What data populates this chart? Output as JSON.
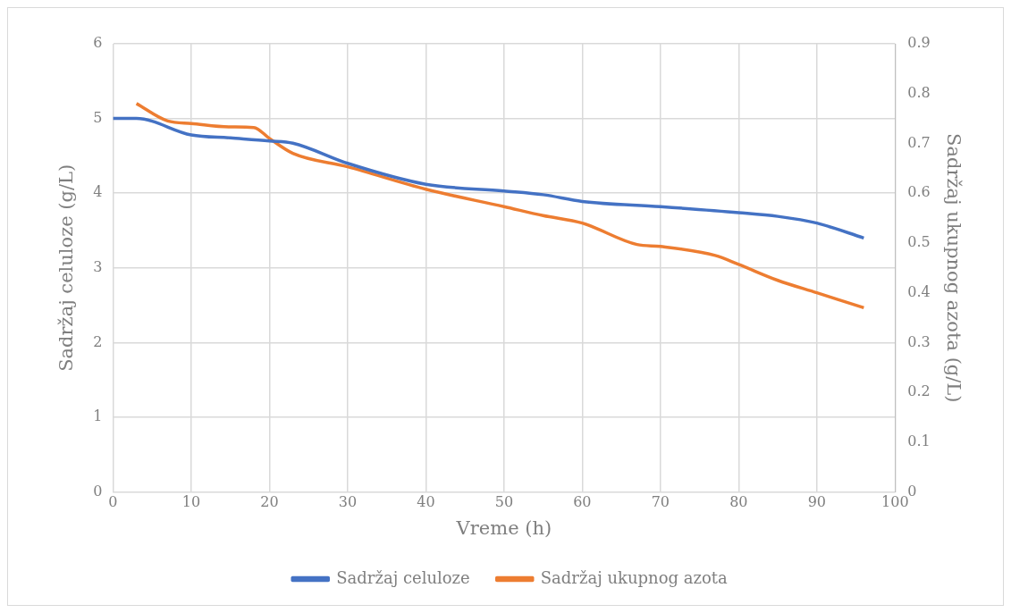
{
  "chart_data": {
    "type": "line",
    "xlabel": "Vreme (h)",
    "ylabel": "Sadržaj celuloze (g/L)",
    "y2label": "Sadržaj ukupnog azota (g/L)",
    "xlim": [
      0,
      100
    ],
    "xticks": [
      0,
      10,
      20,
      30,
      40,
      50,
      60,
      70,
      80,
      90,
      100
    ],
    "ylim": [
      0,
      6
    ],
    "yticks": [
      0,
      1,
      2,
      3,
      4,
      5,
      6
    ],
    "y2lim": [
      0,
      0.9
    ],
    "y2ticks": [
      0,
      0.1,
      0.2,
      0.3,
      0.4,
      0.5,
      0.6,
      0.7,
      0.8,
      0.9
    ],
    "grid": true,
    "legend": "bottom",
    "line_style": "solid",
    "marker": "none",
    "series": [
      {
        "name": "Sadržaj celuloze",
        "color": "#4472c4",
        "x": [
          0,
          3,
          10,
          15,
          20,
          23,
          30,
          40,
          50,
          55,
          60,
          70,
          80,
          85,
          90,
          96
        ],
        "values": [
          5,
          5,
          4.78,
          4.74,
          4.7,
          4.67,
          4.4,
          4.12,
          4.03,
          3.98,
          3.89,
          3.82,
          3.74,
          3.69,
          3.6,
          3.4
        ]
      },
      {
        "name": "Sadržaj ukupnog azota",
        "color": "#ed7d31",
        "axis": "y2",
        "x": [
          3,
          7,
          10,
          15,
          18,
          20,
          23,
          30,
          40,
          50,
          55,
          60,
          67,
          70,
          77,
          80,
          85,
          90,
          96
        ],
        "values": [
          0.78,
          0.745,
          0.74,
          0.733,
          0.732,
          0.71,
          0.68,
          0.653,
          0.608,
          0.573,
          0.555,
          0.54,
          0.497,
          0.493,
          0.475,
          0.457,
          0.425,
          0.4,
          0.37
        ]
      }
    ]
  }
}
